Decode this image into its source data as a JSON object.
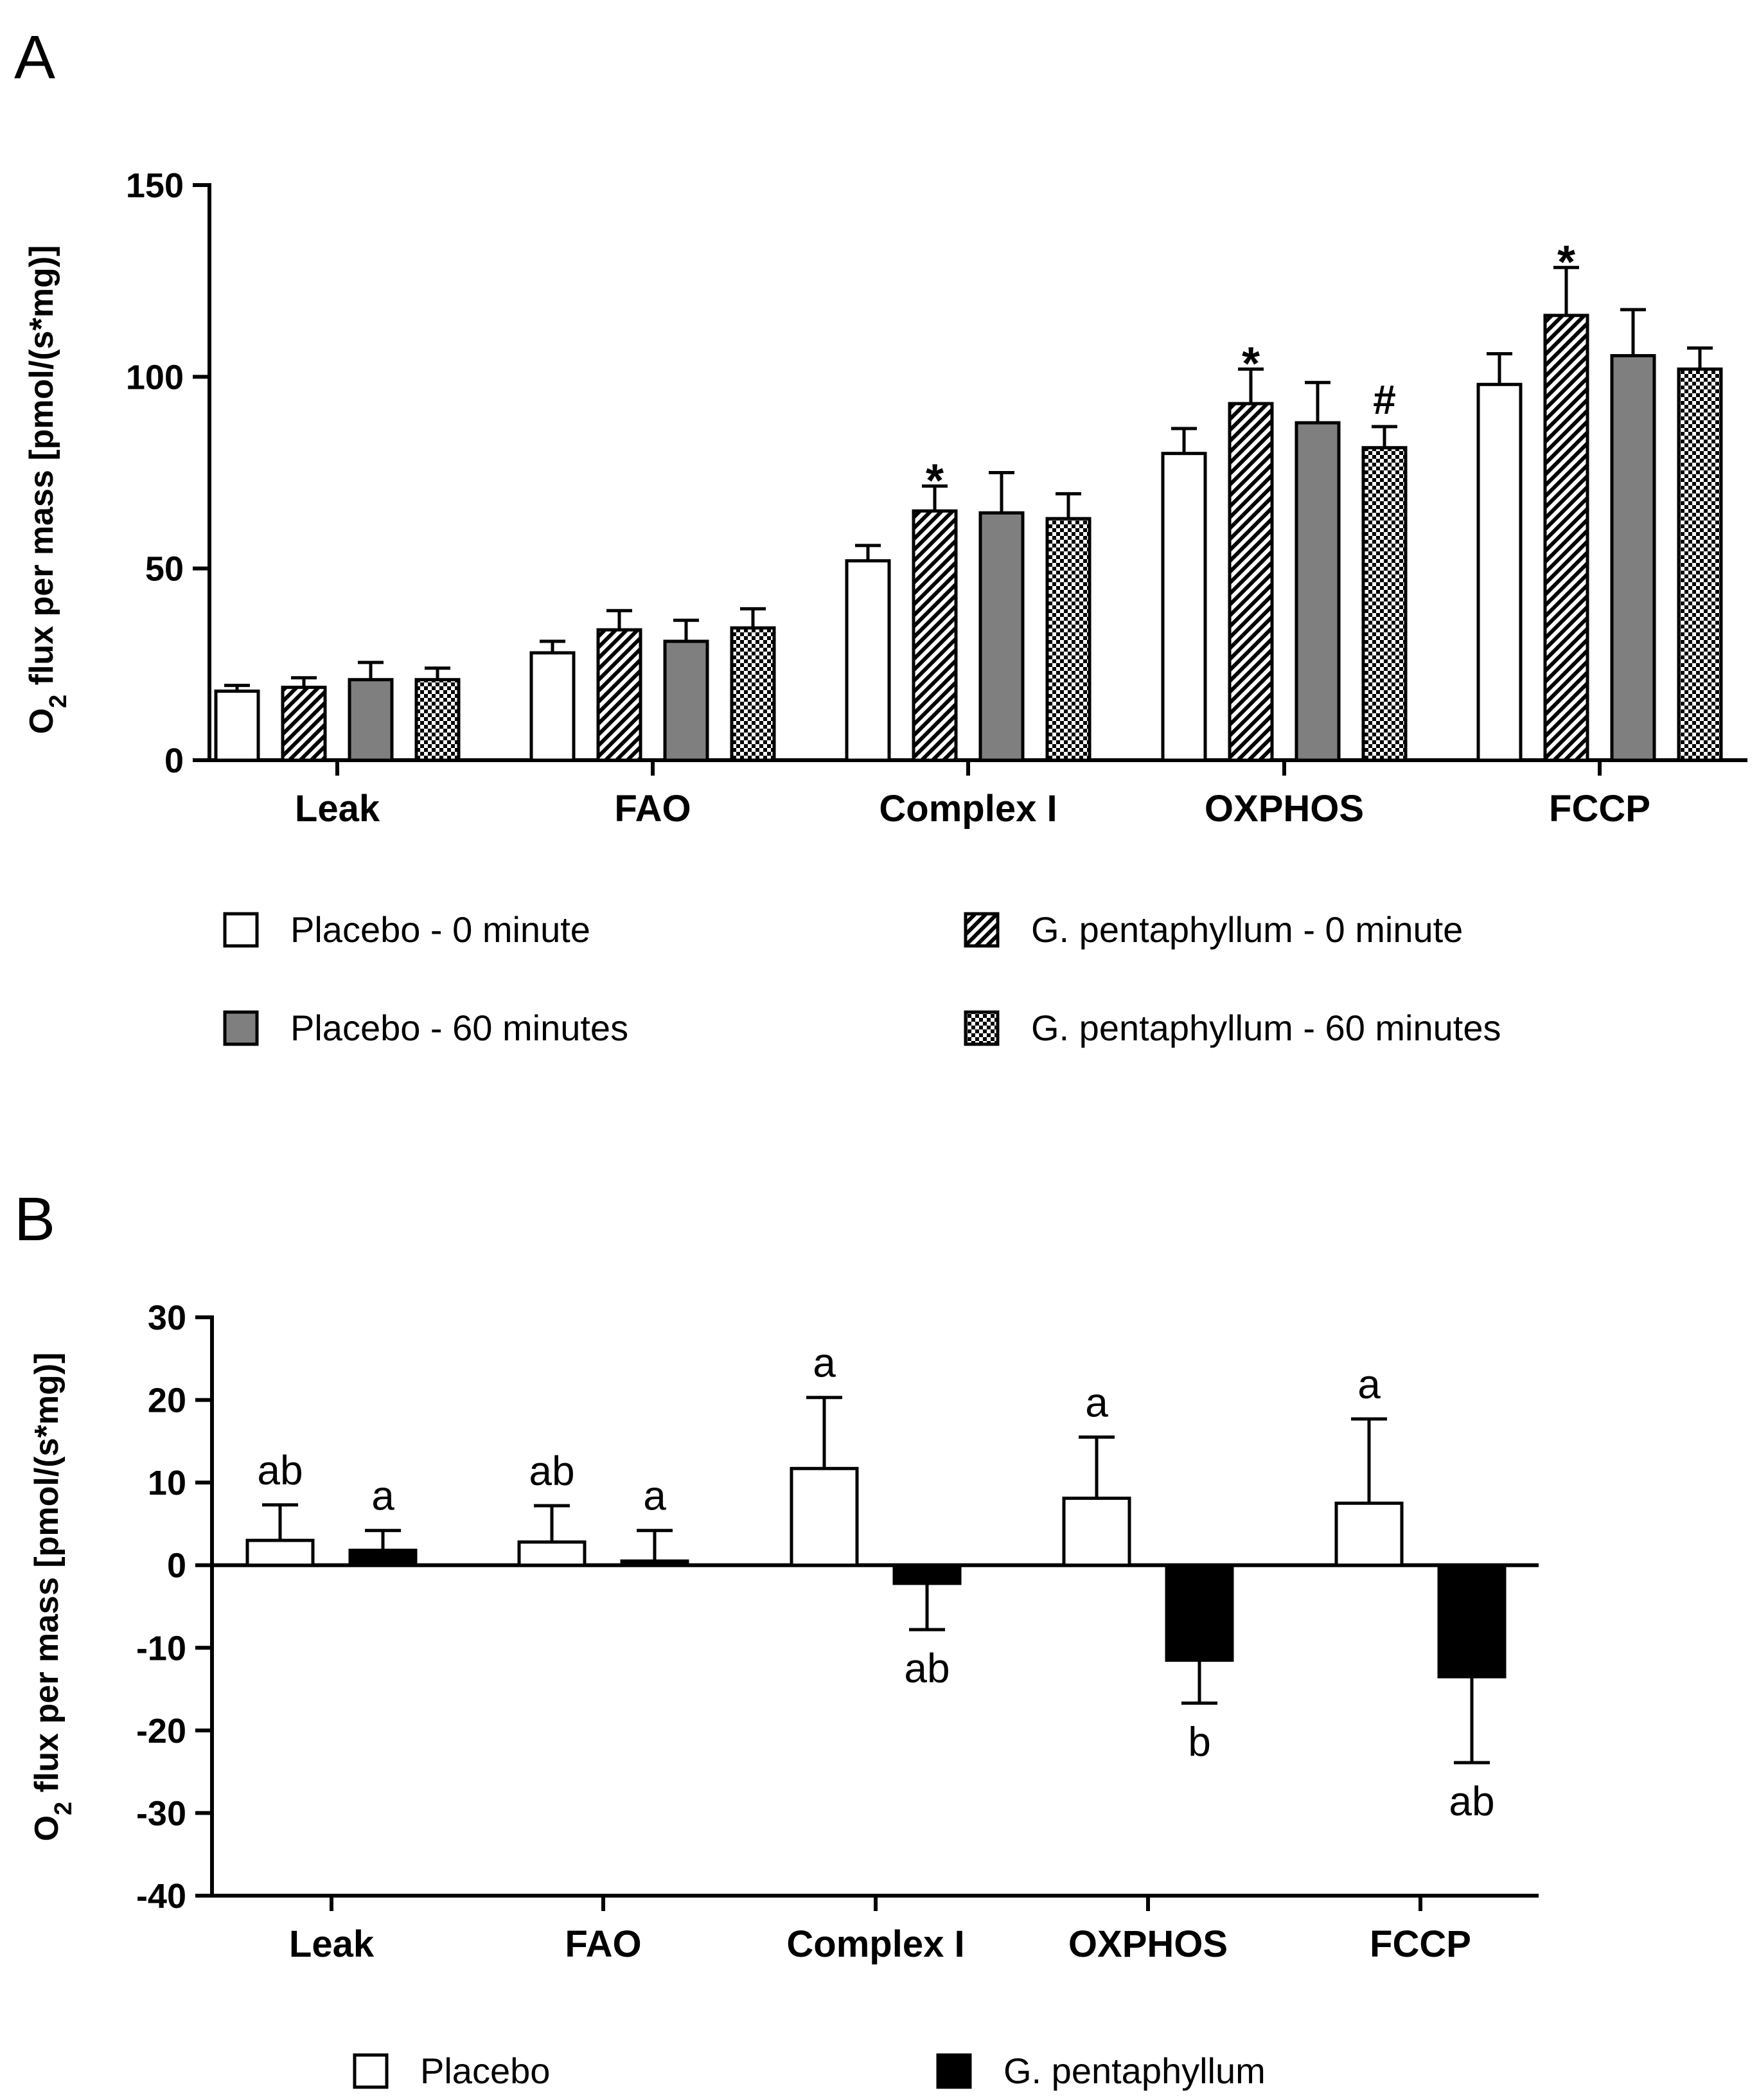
{
  "panels": {
    "a": {
      "letter": "A"
    },
    "b": {
      "letter": "B"
    }
  },
  "colors": {
    "placebo_0": "#ffffff",
    "placebo_60": "#7f7f7f",
    "placebo": "#ffffff",
    "g_pentaphyllum": "#000000",
    "stroke": "#000000"
  },
  "chart_data": [
    {
      "type": "bar",
      "panel": "A",
      "title": "",
      "xlabel": "",
      "ylabel": "O2 flux per mass [pmol/(s*mg)]",
      "ylabel_parts": {
        "main": "O",
        "sub": "2",
        "rest": " flux per mass [pmol/(s*mg)]"
      },
      "ylim": [
        0,
        150
      ],
      "yticks": [
        "0",
        "50",
        "100",
        "150"
      ],
      "categories": [
        "Leak",
        "FAO",
        "Complex I",
        "OXPHOS",
        "FCCP"
      ],
      "legend_position": "below",
      "series": [
        {
          "name": "Placebo - 0 minute",
          "fill": "white",
          "values": [
            18,
            28,
            52,
            80,
            98
          ],
          "errors": [
            1.5,
            3,
            4,
            6.5,
            8
          ]
        },
        {
          "name": "G. pentaphyllum - 0 minute",
          "fill": "hatch",
          "values": [
            19,
            34,
            65,
            93,
            116
          ],
          "errors": [
            2.5,
            5,
            6.5,
            9,
            12.5
          ]
        },
        {
          "name": "Placebo - 60 minutes",
          "fill": "gray",
          "values": [
            21,
            31,
            64.5,
            88,
            105.5
          ],
          "errors": [
            4.5,
            5.5,
            10.5,
            10.5,
            12
          ]
        },
        {
          "name": "G. pentaphyllum - 60 minutes",
          "fill": "checker",
          "values": [
            21,
            34.5,
            63,
            81.5,
            102
          ],
          "errors": [
            3,
            5,
            6.5,
            5.5,
            5.5
          ]
        }
      ],
      "annotations": [
        {
          "category": 2,
          "series": 1,
          "text": "*"
        },
        {
          "category": 3,
          "series": 1,
          "text": "*"
        },
        {
          "category": 3,
          "series": 3,
          "text": "#"
        },
        {
          "category": 4,
          "series": 1,
          "text": "*"
        }
      ]
    },
    {
      "type": "bar",
      "panel": "B",
      "title": "",
      "xlabel": "",
      "ylabel": "O2 flux per mass [pmol/(s*mg)]",
      "ylabel_parts": {
        "main": "O",
        "sub": "2",
        "rest": " flux per mass [pmol/(s*mg)]"
      },
      "ylim": [
        -40,
        30
      ],
      "yticks": [
        "-40",
        "-30",
        "-20",
        "-10",
        "0",
        "10",
        "20",
        "30"
      ],
      "categories": [
        "Leak",
        "FAO",
        "Complex I",
        "OXPHOS",
        "FCCP"
      ],
      "legend_position": "below",
      "series": [
        {
          "name": "Placebo",
          "fill": "white",
          "values": [
            3,
            2.8,
            11.7,
            8.1,
            7.5
          ],
          "errors": [
            4.3,
            4.4,
            8.6,
            7.4,
            10.2
          ],
          "labels": [
            "ab",
            "ab",
            "a",
            "a",
            "a"
          ]
        },
        {
          "name": "G. pentaphyllum",
          "fill": "black",
          "values": [
            1.8,
            0.5,
            -2.2,
            -11.5,
            -13.5
          ],
          "errors": [
            2.4,
            3.7,
            5.6,
            5.2,
            10.4
          ],
          "labels": [
            "a",
            "a",
            "ab",
            "b",
            "ab"
          ]
        }
      ]
    }
  ]
}
